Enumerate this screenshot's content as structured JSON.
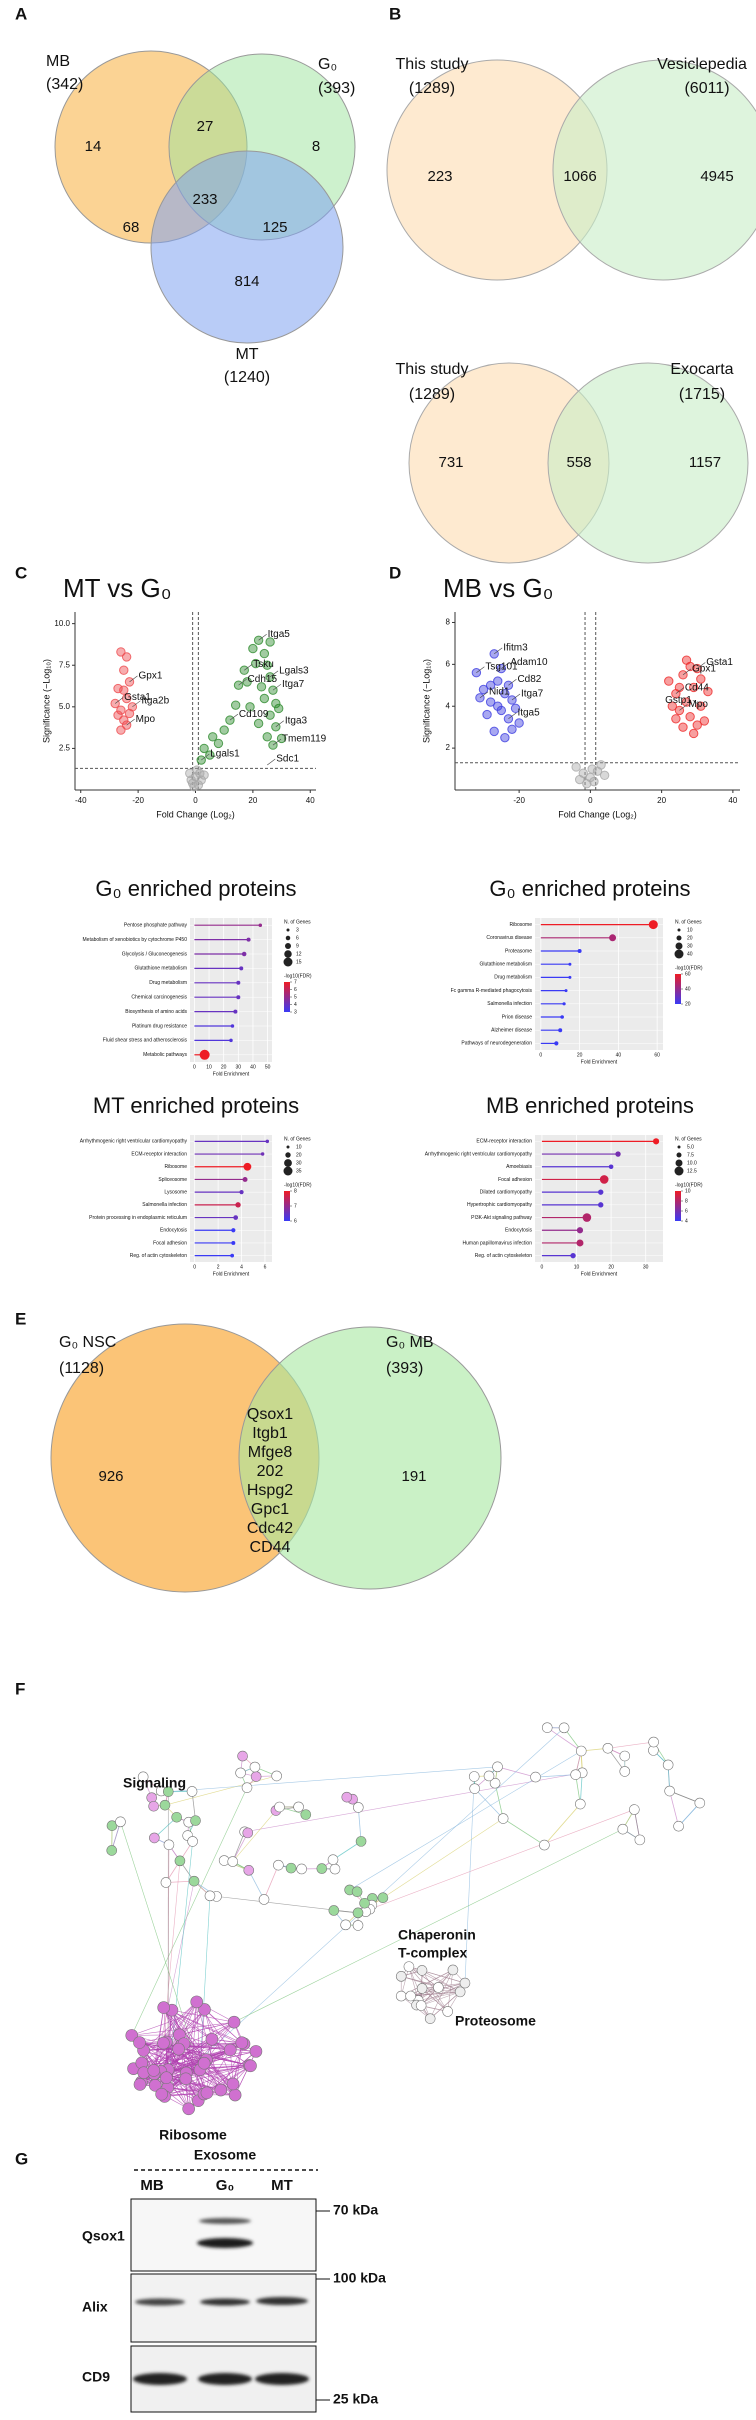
{
  "panel_labels": [
    "A",
    "B",
    "C",
    "D",
    "E",
    "F",
    "G"
  ],
  "venn_a": {
    "sets": [
      {
        "label": "MB",
        "total": "(342)"
      },
      {
        "label": "G₀",
        "total": "(393)"
      },
      {
        "label": "MT",
        "total": "(1240)"
      }
    ],
    "regions": [
      14,
      27,
      8,
      233,
      68,
      125,
      814
    ]
  },
  "venn_b": [
    {
      "sets": [
        {
          "label": "This study",
          "total": "(1289)"
        },
        {
          "label": "Vesiclepedia",
          "total": "(6011)"
        }
      ],
      "regions": [
        223,
        1066,
        4945
      ]
    },
    {
      "sets": [
        {
          "label": "This study",
          "total": "(1289)"
        },
        {
          "label": "Exocarta",
          "total": "(1715)"
        }
      ],
      "regions": [
        731,
        558,
        1157
      ]
    }
  ],
  "venn_e": {
    "sets": [
      {
        "label": "G₀ NSC",
        "total": "(1128)"
      },
      {
        "label": "G₀ MB",
        "total": "(393)"
      }
    ],
    "left_only": 926,
    "right_only": 191,
    "shared": [
      "Qsox1",
      "Itgb1",
      "Mfge8",
      "202",
      "Hspg2",
      "Gpc1",
      "Cdc42",
      "CD44"
    ]
  },
  "chart_data": [
    {
      "type": "scatter",
      "title": "MT vs G₀",
      "xlabel": "Fold Change (Log₂)",
      "ylabel": "Significance (−Log₁₀)",
      "xlim": [
        -42,
        42
      ],
      "ylim": [
        0,
        10.7
      ],
      "xticks": [
        -40,
        -20,
        0,
        20,
        40
      ],
      "yticks": [
        2.5,
        {
          "value": 5,
          "label": "5.0"
        },
        7.5,
        {
          "value": 10,
          "label": "10.0"
        }
      ],
      "thresholds": {
        "x": [
          -1,
          1
        ],
        "y": 1.3
      },
      "series": [
        {
          "color": "#ee4a4e",
          "x": [
            -28,
            -27,
            -26,
            -25,
            -24,
            -23,
            -26,
            -25,
            -24,
            -23,
            -27,
            -22,
            -25,
            -24,
            -26
          ],
          "values": [
            5.2,
            6.1,
            4.8,
            7.2,
            5.5,
            6.5,
            8.3,
            4.2,
            3.9,
            4.6,
            4.5,
            5.0,
            6.0,
            8.0,
            3.6
          ]
        },
        {
          "color": "#2e8b2e",
          "x": [
            2,
            3,
            5,
            6,
            8,
            10,
            12,
            14,
            15,
            17,
            18,
            20,
            22,
            24,
            25,
            26,
            27,
            28,
            24,
            26,
            28,
            25,
            27,
            29,
            23,
            21,
            26,
            30,
            22,
            19
          ],
          "values": [
            1.8,
            2.5,
            2.1,
            3.2,
            2.8,
            3.6,
            4.2,
            5.1,
            6.3,
            7.2,
            6.5,
            8.5,
            9.0,
            8.2,
            7.5,
            6.8,
            6.0,
            5.2,
            5.5,
            4.5,
            3.8,
            3.2,
            2.7,
            4.9,
            6.2,
            7.6,
            8.9,
            3.1,
            4.0,
            5.0
          ]
        },
        {
          "color": "#a8a8a8",
          "x": [
            -1,
            0,
            1,
            -2,
            2,
            0.5,
            -0.5,
            1.5,
            -1.5,
            3
          ],
          "values": [
            0.4,
            0.8,
            0.3,
            1.0,
            0.6,
            1.2,
            0.2,
            1.0,
            0.6,
            0.9
          ]
        }
      ],
      "annotations": [
        {
          "text": "Gsta1",
          "x": -28,
          "y": 5.2
        },
        {
          "text": "Gpx1",
          "x": -23,
          "y": 6.5
        },
        {
          "text": "Itga2b",
          "x": -22,
          "y": 5.0
        },
        {
          "text": "Mpo",
          "x": -24,
          "y": 3.9
        },
        {
          "text": "Lgals1",
          "x": 2,
          "y": 1.8
        },
        {
          "text": "Tsku",
          "x": 17,
          "y": 7.2
        },
        {
          "text": "Cdh15",
          "x": 15,
          "y": 6.3
        },
        {
          "text": "Cd109",
          "x": 12,
          "y": 4.2
        },
        {
          "text": "Itga5",
          "x": 22,
          "y": 9.0
        },
        {
          "text": "Lgals3",
          "x": 26,
          "y": 6.8
        },
        {
          "text": "Itga7",
          "x": 27,
          "y": 6.0
        },
        {
          "text": "Itga3",
          "x": 28,
          "y": 3.8
        },
        {
          "text": "Tmem119",
          "x": 27,
          "y": 2.7
        },
        {
          "text": "Sdc1",
          "x": 25,
          "y": 1.5
        }
      ]
    },
    {
      "type": "scatter",
      "title": "MB vs G₀",
      "xlabel": "Fold Change (Log₂)",
      "ylabel": "Significance (−Log₁₀)",
      "xlim": [
        -38,
        42
      ],
      "ylim": [
        0,
        8.5
      ],
      "xticks": [
        -20,
        0,
        20,
        40
      ],
      "yticks": [
        2,
        4,
        6,
        8
      ],
      "thresholds": {
        "x": [
          -1.5,
          1.5
        ],
        "y": 1.3
      },
      "series": [
        {
          "color": "#3d3de0",
          "x": [
            -32,
            -30,
            -28,
            -27,
            -26,
            -25,
            -24,
            -23,
            -22,
            -29,
            -27,
            -25,
            -23,
            -21,
            -26,
            -28,
            -24,
            -20,
            -31,
            -22
          ],
          "values": [
            5.6,
            4.8,
            4.2,
            6.5,
            5.2,
            3.8,
            4.6,
            3.4,
            2.9,
            3.6,
            2.8,
            5.8,
            5.0,
            3.9,
            4.0,
            5.0,
            2.5,
            3.2,
            4.4,
            4.3
          ]
        },
        {
          "color": "#ee2a2a",
          "x": [
            22,
            24,
            25,
            26,
            27,
            28,
            29,
            30,
            31,
            32,
            26,
            28,
            30,
            24,
            27,
            29,
            33,
            25,
            31,
            23
          ],
          "values": [
            5.2,
            4.6,
            3.8,
            5.5,
            4.2,
            3.5,
            4.9,
            5.8,
            4.0,
            3.3,
            3.0,
            5.9,
            3.1,
            3.4,
            6.2,
            2.7,
            4.7,
            4.9,
            5.3,
            4.0
          ]
        },
        {
          "color": "#a8a8a8",
          "x": [
            -1,
            0,
            1,
            2,
            -2,
            3,
            -3,
            0.5,
            4,
            -4
          ],
          "values": [
            0.3,
            0.6,
            0.4,
            0.9,
            0.8,
            1.2,
            0.5,
            1.0,
            0.7,
            1.1
          ]
        }
      ],
      "annotations": [
        {
          "text": "Ifitm3",
          "x": -27,
          "y": 6.5
        },
        {
          "text": "Adam10",
          "x": -25,
          "y": 5.8
        },
        {
          "text": "Tsg101",
          "x": -32,
          "y": 5.6
        },
        {
          "text": "Cd82",
          "x": -23,
          "y": 5.0
        },
        {
          "text": "Nid1",
          "x": -31,
          "y": 4.4
        },
        {
          "text": "Itga7",
          "x": -22,
          "y": 4.3
        },
        {
          "text": "Itga5",
          "x": -23,
          "y": 3.4
        },
        {
          "text": "Gpx1",
          "x": 26,
          "y": 5.5
        },
        {
          "text": "Gsta1",
          "x": 30,
          "y": 5.8
        },
        {
          "text": "Cd44",
          "x": 24,
          "y": 4.6
        },
        {
          "text": "Gstp1",
          "x": 31,
          "y": 4.0
        },
        {
          "text": "Mpo",
          "x": 25,
          "y": 3.8
        }
      ]
    },
    {
      "type": "lollipop",
      "title": "G₀ enriched proteins",
      "xlabel": "Fold Enrichment",
      "xlim": [
        -3,
        53
      ],
      "xticks": [
        0,
        10,
        20,
        30,
        40,
        50
      ],
      "categories": [
        "Pentose phosphate pathway",
        "Metabolism of xenobiotics by cytochrome P450",
        "Glycolysis / Gluconeogenesis",
        "Glutathione metabolism",
        "Drug metabolism",
        "Chemical carcinogenesis",
        "Biosynthesis of amino acids",
        "Platinum drug resistance",
        "Fluid shear stress and atherosclerosis",
        "Metabolic pathways"
      ],
      "values": [
        45,
        37,
        34,
        32,
        30,
        30,
        28,
        26,
        25,
        7
      ],
      "sizes": [
        4,
        5,
        6,
        5,
        5,
        5,
        5,
        4,
        4,
        17
      ],
      "fdr": [
        5,
        4.5,
        4.5,
        4,
        4,
        4,
        4,
        3.5,
        3.5,
        7
      ],
      "size_legend": {
        "title": "N. of Genes",
        "values": [
          3,
          6,
          9,
          12,
          15
        ]
      },
      "color_legend": {
        "title": "-log10(FDR)",
        "ticks": [
          3,
          4,
          5,
          6,
          7
        ],
        "colors": [
          "#3a3af5",
          "#ee1c25"
        ]
      }
    },
    {
      "type": "lollipop",
      "title": "MT enriched proteins",
      "xlabel": "Fold Enrichment",
      "xlim": [
        -0.4,
        6.6
      ],
      "xticks": [
        0,
        2,
        4,
        6
      ],
      "categories": [
        "Arrhythmogenic right ventricular cardiomyopathy",
        "ECM-receptor interaction",
        "Ribosome",
        "Spliceosome",
        "Lysosome",
        "Salmonella infection",
        "Protein processing in endoplasmic reticulum",
        "Endocytosis",
        "Focal adhesion",
        "Reg. of actin cytoskeleton"
      ],
      "values": [
        6.2,
        5.8,
        4.5,
        4.3,
        4.0,
        3.7,
        3.5,
        3.3,
        3.3,
        3.2
      ],
      "sizes": [
        12,
        12,
        30,
        18,
        15,
        20,
        17,
        15,
        14,
        13
      ],
      "fdr": [
        6.5,
        6.6,
        8,
        7,
        6.5,
        7.6,
        6.5,
        6,
        6,
        6
      ],
      "size_legend": {
        "title": "N. of Genes",
        "values": [
          10,
          20,
          30,
          35
        ]
      },
      "color_legend": {
        "title": "-log10(FDR)",
        "ticks": [
          6,
          7,
          8
        ],
        "colors": [
          "#3a3af5",
          "#ee1c25"
        ]
      }
    },
    {
      "type": "lollipop",
      "title": "G₀ enriched proteins",
      "xlabel": "Fold Enrichment",
      "xlim": [
        -3,
        63
      ],
      "xticks": [
        0,
        20,
        40,
        60
      ],
      "categories": [
        "Ribosome",
        "Coronavirus disease",
        "Proteasome",
        "Glutathione metabolism",
        "Drug metabolism",
        "Fc gamma R-mediated phagocytosis",
        "Salmonella infection",
        "Prion disease",
        "Alzheimer disease",
        "Pathways of neurodegeneration"
      ],
      "values": [
        58,
        37,
        20,
        15,
        15,
        13,
        12,
        11,
        10,
        8
      ],
      "sizes": [
        40,
        30,
        15,
        10,
        10,
        10,
        11,
        13,
        15,
        16
      ],
      "fdr": [
        62,
        45,
        18,
        12,
        11,
        10,
        10,
        12,
        14,
        16
      ],
      "size_legend": {
        "title": "N. of Genes",
        "values": [
          10,
          20,
          30,
          40
        ]
      },
      "color_legend": {
        "title": "-log10(FDR)",
        "ticks": [
          20,
          40,
          60
        ],
        "colors": [
          "#3a3af5",
          "#ee1c25"
        ]
      }
    },
    {
      "type": "lollipop",
      "title": "MB enriched proteins",
      "xlabel": "Fold Enrichment",
      "xlim": [
        -2,
        35
      ],
      "xticks": [
        0,
        10,
        20,
        30
      ],
      "categories": [
        "ECM-receptor interaction",
        "Arrhythmogenic right ventricular cardiomyopathy",
        "Amoebiasis",
        "Focal adhesion",
        "Dilated cardiomyopathy",
        "Hypertrophic cardiomyopathy",
        "PI3K-Akt signaling pathway",
        "Endocytosis",
        "Human papillomavirus infection",
        "Reg. of actin cytoskeleton"
      ],
      "values": [
        33,
        22,
        20,
        18,
        17,
        17,
        13,
        11,
        11,
        9
      ],
      "sizes": [
        9,
        8,
        7,
        12,
        8,
        8,
        12,
        9,
        10,
        8
      ],
      "fdr": [
        10,
        6,
        5,
        9,
        5,
        5,
        8,
        7,
        8,
        5
      ],
      "size_legend": {
        "title": "N. of Genes",
        "values": [
          {
            "value": 5,
            "label": "5.0"
          },
          7.5,
          {
            "value": 10,
            "label": "10.0"
          },
          12.5
        ]
      },
      "color_legend": {
        "title": "-log10(FDR)",
        "ticks": [
          4,
          6,
          8,
          10
        ],
        "colors": [
          "#3a3af5",
          "#ee1c25"
        ]
      }
    }
  ],
  "network": {
    "signaling": "Signaling",
    "chaperonin": [
      "Chaperonin",
      "T-complex"
    ],
    "proteosome": "Proteosome",
    "ribosome": "Ribosome"
  },
  "blot": {
    "header": "Exosome",
    "lanes": [
      "MB",
      "G₀",
      "MT"
    ],
    "rows": [
      "Qsox1",
      "Alix",
      "CD9"
    ],
    "markers": [
      "70 kDa",
      "100 kDa",
      "25 kDa"
    ]
  }
}
